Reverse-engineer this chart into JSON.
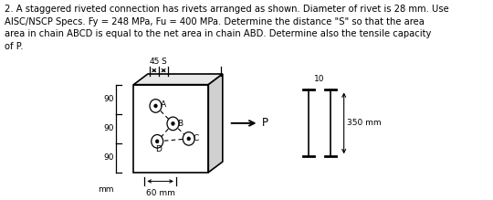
{
  "title_text": "2. A staggered riveted connection has rivets arranged as shown. Diameter of rivet is 28 mm. Use\nAISC/NSCP Specs. Fy = 248 MPa, Fu = 400 MPa. Determine the distance \"S\" so that the area\narea in chain ABCD is equal to the net area in chain ABD. Determine also the tensile capacity\nof P.",
  "bg_color": "#ffffff",
  "text_color": "#000000",
  "dim_45": "45",
  "dim_S": "S",
  "dim_60": "60 mm",
  "dim_10": "10",
  "dim_350": "350 mm",
  "dim_90_labels": [
    "90",
    "90",
    "90"
  ],
  "dim_mm": "mm",
  "arrow_P": "P",
  "font_size_title": 7.2,
  "font_size_labels": 6.5,
  "font_size_dims": 6.5
}
